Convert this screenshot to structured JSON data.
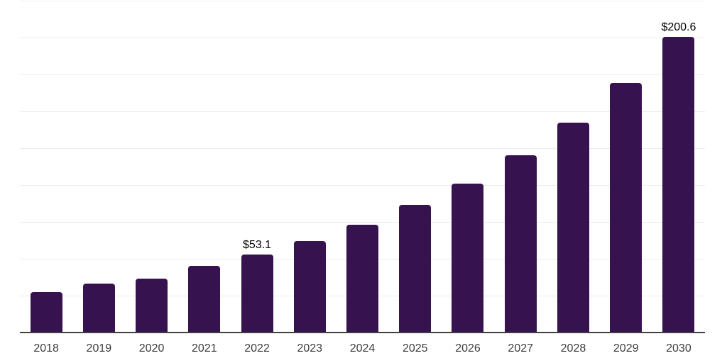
{
  "chart_data": {
    "type": "bar",
    "title": "",
    "xlabel": "",
    "ylabel": "",
    "categories": [
      "2018",
      "2019",
      "2020",
      "2021",
      "2022",
      "2023",
      "2024",
      "2025",
      "2026",
      "2027",
      "2028",
      "2029",
      "2030"
    ],
    "values": [
      27.5,
      33.4,
      36.5,
      45.2,
      53.1,
      62.0,
      73.1,
      86.4,
      101.1,
      120.2,
      142.3,
      169.1,
      200.6
    ],
    "value_labels": {
      "2022": "$53.1",
      "2030": "$200.6"
    },
    "ylim": [
      0,
      225
    ],
    "grid": {
      "visible": true,
      "interval": 25
    },
    "legend": "none",
    "colors": {
      "bar": "#36134f",
      "axis_line": "#3f3f3f",
      "gridline": "#ececec",
      "value_label": "#000000",
      "tick_label": "#3d3d3d",
      "background": "#ffffff"
    }
  }
}
